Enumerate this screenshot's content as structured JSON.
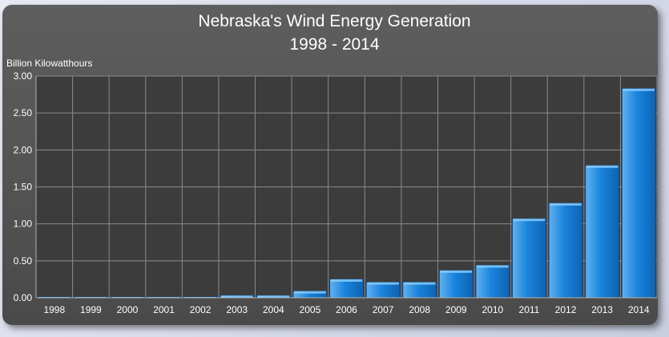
{
  "chart_data": {
    "type": "bar",
    "title": "Nebraska's Wind Energy Generation",
    "subtitle": "1998 - 2014",
    "ylabel": "Billion Kilowatthours",
    "xlabel": "",
    "categories": [
      "1998",
      "1999",
      "2000",
      "2001",
      "2002",
      "2003",
      "2004",
      "2005",
      "2006",
      "2007",
      "2008",
      "2009",
      "2010",
      "2011",
      "2012",
      "2013",
      "2014"
    ],
    "values": [
      0.01,
      0.01,
      0.01,
      0.01,
      0.01,
      0.03,
      0.03,
      0.09,
      0.25,
      0.21,
      0.21,
      0.37,
      0.44,
      1.07,
      1.28,
      1.79,
      2.83
    ],
    "ylim": [
      0,
      3.0
    ],
    "yticks": [
      "0.00",
      "0.50",
      "1.00",
      "1.50",
      "2.00",
      "2.50",
      "3.00"
    ],
    "grid": true,
    "legend": "none",
    "bar_color": "#1a7fd4",
    "plot_background": "#3c3c3c",
    "panel_background": "#555555"
  }
}
